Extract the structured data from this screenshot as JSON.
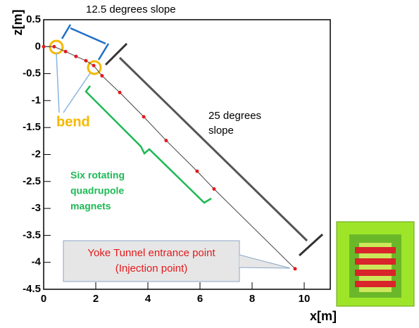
{
  "chart_data": {
    "type": "line",
    "x_label": "x[m]",
    "y_label": "z[m]",
    "x": [
      0,
      0.4,
      0.84,
      1.24,
      1.62,
      1.92,
      2.24,
      2.92,
      3.84,
      4.7,
      5.89,
      6.54,
      9.65
    ],
    "series": [
      {
        "color": "#e31a1c",
        "values": [
          0,
          0,
          -0.09,
          -0.18,
          -0.26,
          -0.35,
          -0.54,
          -0.85,
          -1.3,
          -1.74,
          -2.31,
          -2.64,
          -4.12
        ]
      }
    ],
    "xlim": [
      0,
      11
    ],
    "ylim": [
      -4.5,
      0.5
    ],
    "xticks": [
      0,
      2,
      4,
      6,
      8,
      10
    ],
    "yticks": [
      -4.5,
      -4,
      -3.5,
      -3,
      -2.5,
      -2,
      -1.5,
      -1,
      -0.5,
      0,
      0.5
    ],
    "annotations": {
      "slope_small": "12.5 degrees slope",
      "bend": "bend",
      "slope_large": [
        "25 degrees",
        "slope"
      ],
      "quadrupole": [
        "Six rotating",
        "quadrupole",
        "magnets"
      ],
      "injection": [
        "Yoke Tunnel entrance point",
        "(Injection point)"
      ]
    }
  }
}
